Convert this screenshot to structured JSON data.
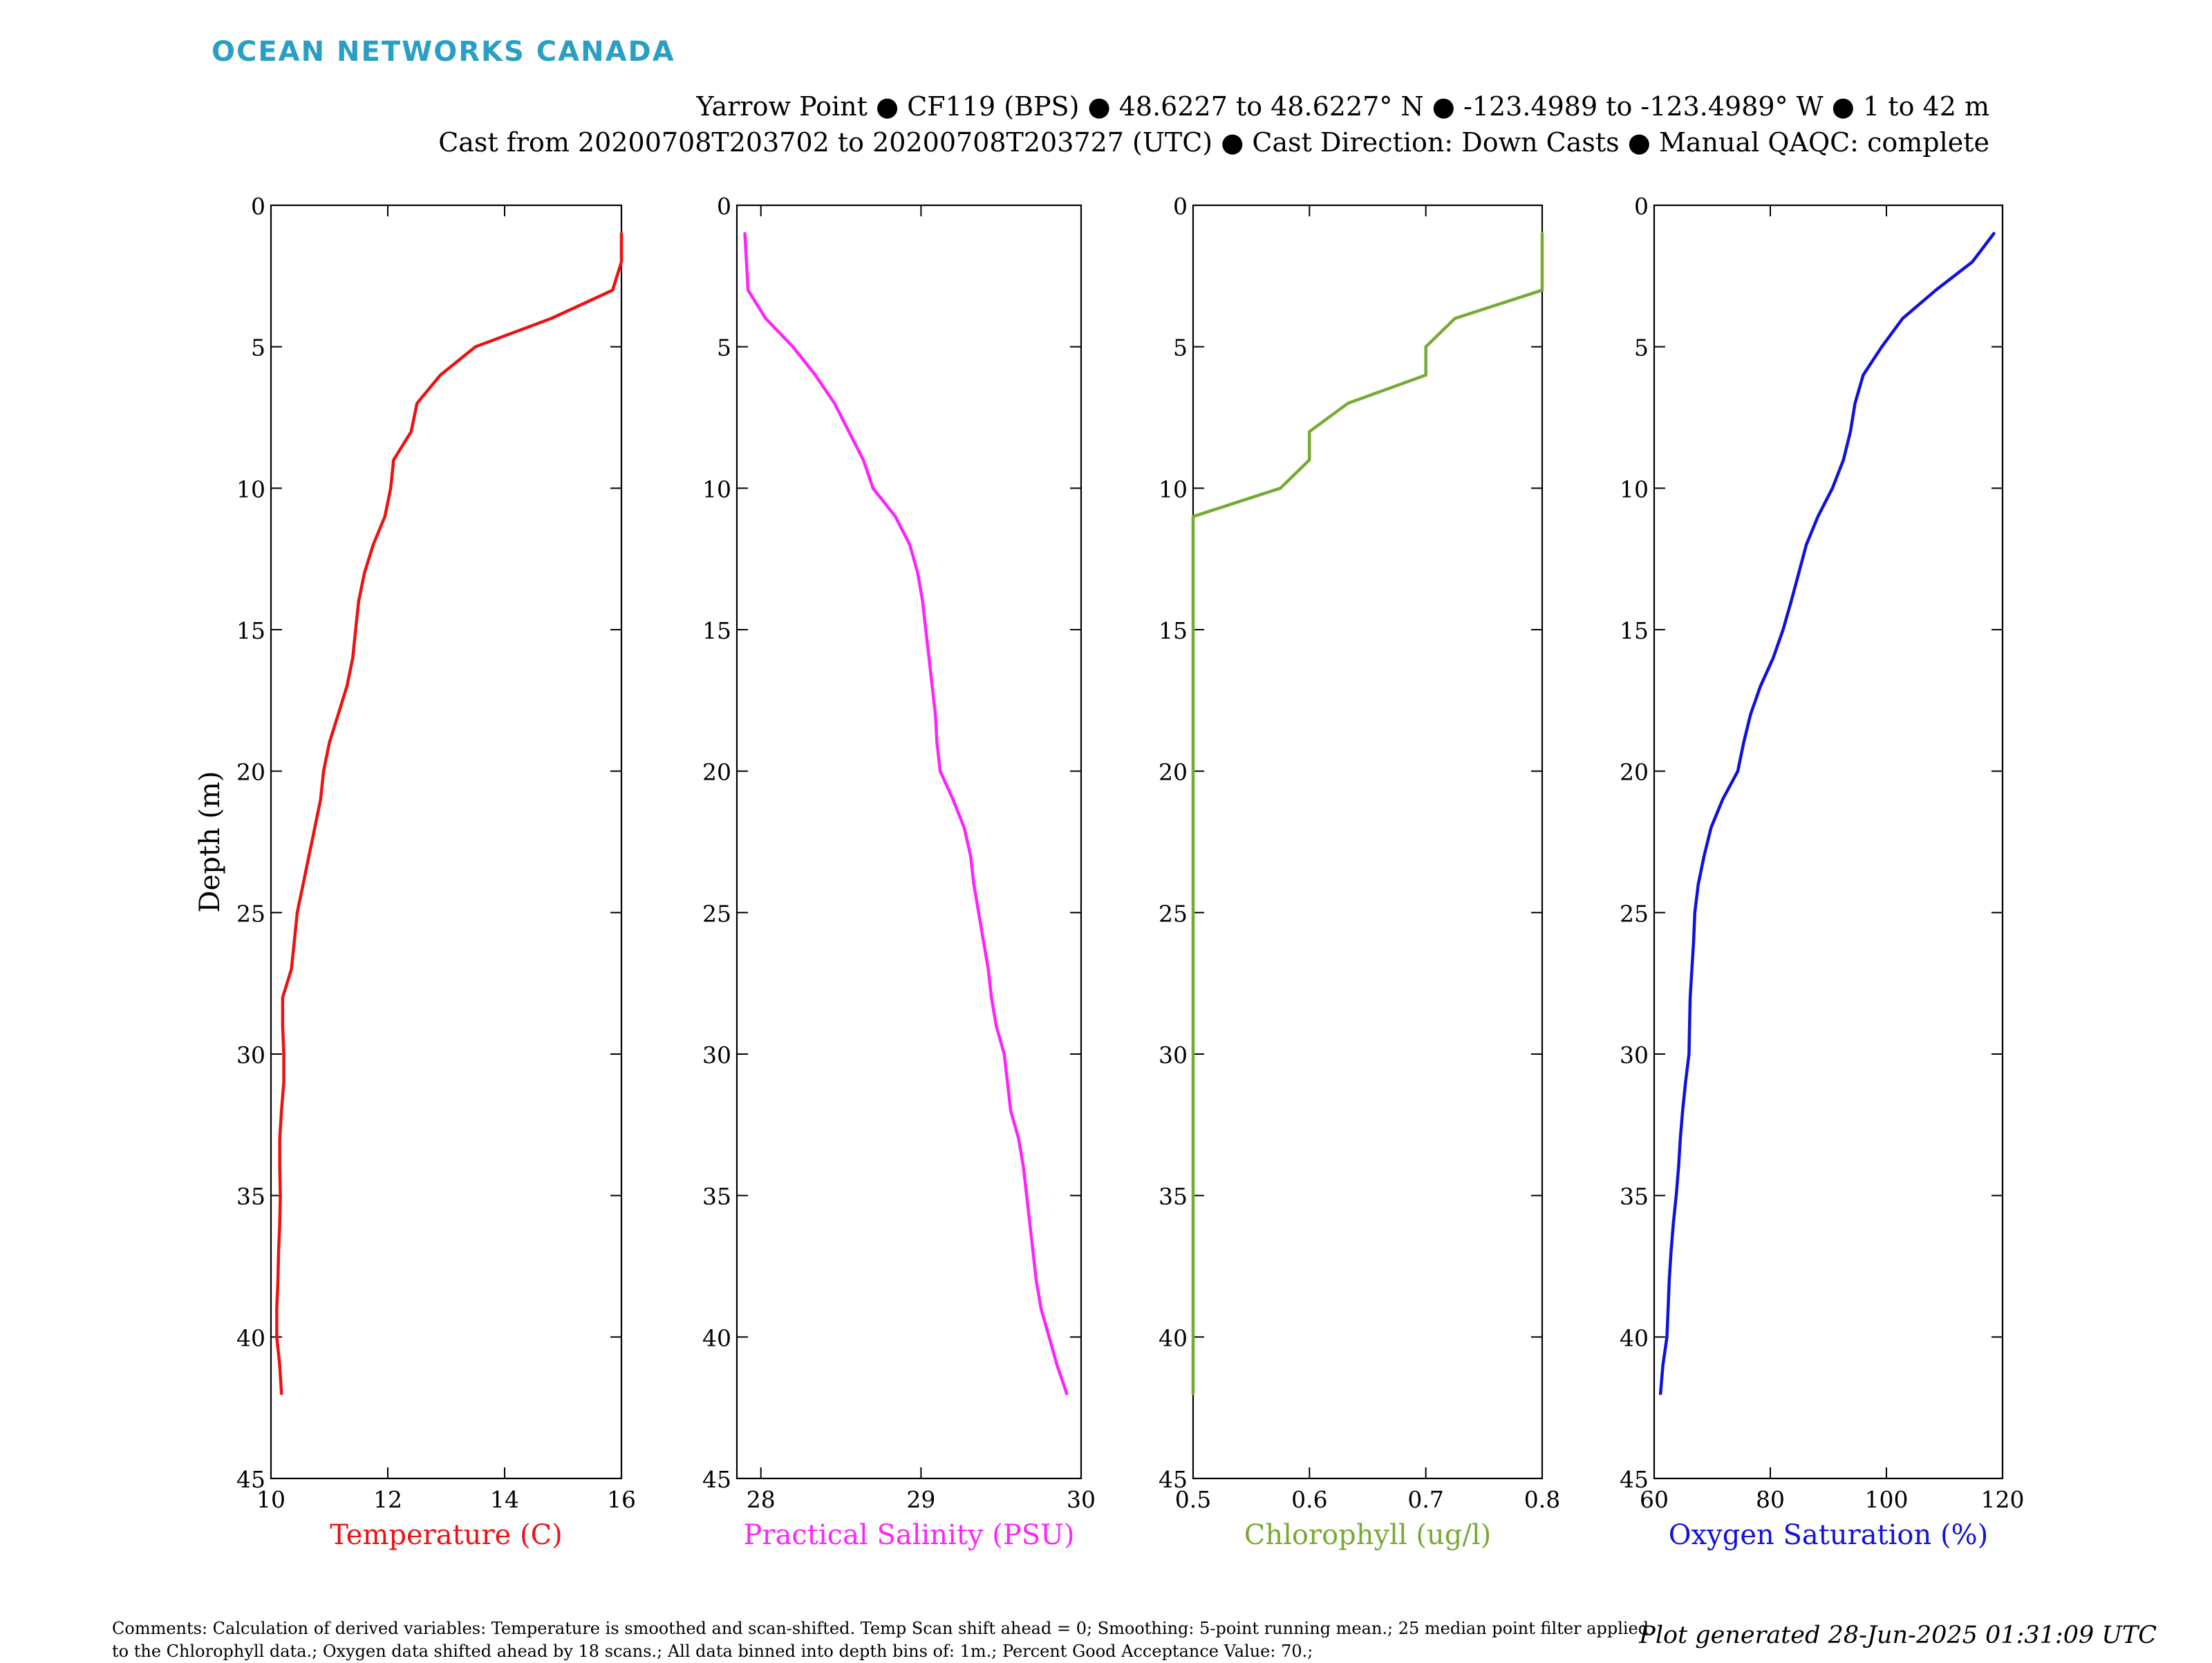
{
  "brand": "OCEAN NETWORKS CANADA",
  "header": {
    "line1": "Yarrow Point ● CF119 (BPS) ● 48.6227 to 48.6227° N ● -123.4989 to -123.4989° W ● 1 to 42 m",
    "line2": "Cast from 20200708T203702 to 20200708T203727 (UTC) ● Cast Direction: Down Casts ● Manual QAQC: complete"
  },
  "colors": {
    "brand": "#2a9fc4",
    "temperature": "#ee1111",
    "salinity": "#ff22ff",
    "chlorophyll": "#77aa33",
    "oxygen": "#1111dd"
  },
  "chart_data": [
    {
      "type": "line",
      "xlabel": "Temperature (C)",
      "ylabel": "Depth (m)",
      "xlim": [
        10,
        16
      ],
      "ylim": [
        45,
        0
      ],
      "xticks": [
        10,
        12,
        14,
        16
      ],
      "yticks": [
        0,
        5,
        10,
        15,
        20,
        25,
        30,
        35,
        40,
        45
      ],
      "color": "#ee1111",
      "x": [
        16.0,
        16.0,
        15.85,
        14.8,
        13.5,
        12.9,
        12.5,
        12.4,
        12.1,
        12.05,
        11.95,
        11.75,
        11.6,
        11.5,
        11.45,
        11.4,
        11.3,
        11.15,
        11.0,
        10.9,
        10.85,
        10.75,
        10.65,
        10.55,
        10.45,
        10.4,
        10.35,
        10.2,
        10.2,
        10.22,
        10.22,
        10.18,
        10.15,
        10.15,
        10.16,
        10.15,
        10.13,
        10.12,
        10.1,
        10.1,
        10.15,
        10.18
      ],
      "y": [
        1,
        2,
        3,
        4,
        5,
        6,
        7,
        8,
        9,
        10,
        11,
        12,
        13,
        14,
        15,
        16,
        17,
        18,
        19,
        20,
        21,
        22,
        23,
        24,
        25,
        26,
        27,
        28,
        29,
        30,
        31,
        32,
        33,
        34,
        35,
        36,
        37,
        38,
        39,
        40,
        41,
        42
      ]
    },
    {
      "type": "line",
      "xlabel": "Practical Salinity (PSU)",
      "xlim": [
        27.85,
        30
      ],
      "ylim": [
        45,
        0
      ],
      "xticks": [
        28,
        29,
        30
      ],
      "yticks": [
        0,
        5,
        10,
        15,
        20,
        25,
        30,
        35,
        40,
        45
      ],
      "color": "#ff22ff",
      "x": [
        27.9,
        27.91,
        27.92,
        28.03,
        28.2,
        28.34,
        28.46,
        28.55,
        28.64,
        28.7,
        28.84,
        28.93,
        28.98,
        29.01,
        29.03,
        29.05,
        29.07,
        29.09,
        29.1,
        29.12,
        29.2,
        29.27,
        29.31,
        29.33,
        29.36,
        29.39,
        29.42,
        29.44,
        29.47,
        29.52,
        29.54,
        29.56,
        29.61,
        29.64,
        29.66,
        29.68,
        29.7,
        29.72,
        29.75,
        29.8,
        29.85,
        29.91
      ],
      "y": [
        1,
        2,
        3,
        4,
        5,
        6,
        7,
        8,
        9,
        10,
        11,
        12,
        13,
        14,
        15,
        16,
        17,
        18,
        19,
        20,
        21,
        22,
        23,
        24,
        25,
        26,
        27,
        28,
        29,
        30,
        31,
        32,
        33,
        34,
        35,
        36,
        37,
        38,
        39,
        40,
        41,
        42
      ]
    },
    {
      "type": "line",
      "xlabel": "Chlorophyll (ug/l)",
      "xlim": [
        0.5,
        0.8
      ],
      "ylim": [
        45,
        0
      ],
      "xticks": [
        0.5,
        0.6,
        0.7,
        0.8
      ],
      "yticks": [
        0,
        5,
        10,
        15,
        20,
        25,
        30,
        35,
        40,
        45
      ],
      "color": "#77aa33",
      "x": [
        0.8,
        0.8,
        0.8,
        0.725,
        0.7,
        0.7,
        0.633,
        0.6,
        0.6,
        0.575,
        0.5,
        0.5,
        0.5,
        0.5,
        0.5,
        0.5,
        0.5,
        0.5,
        0.5,
        0.5,
        0.5,
        0.5,
        0.5,
        0.5,
        0.5,
        0.5,
        0.5,
        0.5,
        0.5,
        0.5,
        0.5,
        0.5,
        0.5,
        0.5,
        0.5,
        0.5,
        0.5,
        0.5,
        0.5,
        0.5,
        0.5,
        0.5
      ],
      "y": [
        1,
        2,
        3,
        4,
        5,
        6,
        7,
        8,
        9,
        10,
        11,
        12,
        13,
        14,
        15,
        16,
        17,
        18,
        19,
        20,
        21,
        22,
        23,
        24,
        25,
        26,
        27,
        28,
        29,
        30,
        31,
        32,
        33,
        34,
        35,
        36,
        37,
        38,
        39,
        40,
        41,
        42
      ]
    },
    {
      "type": "line",
      "xlabel": "Oxygen Saturation (%)",
      "xlim": [
        60,
        120
      ],
      "ylim": [
        45,
        0
      ],
      "xticks": [
        60,
        80,
        100,
        120
      ],
      "yticks": [
        0,
        5,
        10,
        15,
        20,
        25,
        30,
        35,
        40,
        45
      ],
      "color": "#1111dd",
      "x": [
        118.5,
        114.8,
        108.5,
        102.8,
        99.2,
        96,
        94.6,
        93.8,
        92.6,
        90.7,
        88.2,
        86.2,
        84.9,
        83.6,
        82.2,
        80.5,
        78.3,
        76.6,
        75.4,
        74.4,
        71.8,
        69.8,
        68.6,
        67.6,
        67.0,
        66.8,
        66.5,
        66.2,
        66.1,
        66.0,
        65.4,
        64.9,
        64.5,
        64.2,
        63.8,
        63.3,
        62.9,
        62.6,
        62.4,
        62.2,
        61.5,
        61.1
      ],
      "y": [
        1,
        2,
        3,
        4,
        5,
        6,
        7,
        8,
        9,
        10,
        11,
        12,
        13,
        14,
        15,
        16,
        17,
        18,
        19,
        20,
        21,
        22,
        23,
        24,
        25,
        26,
        27,
        28,
        29,
        30,
        31,
        32,
        33,
        34,
        35,
        36,
        37,
        38,
        39,
        40,
        41,
        42
      ]
    }
  ],
  "comments": "Comments: Calculation of derived variables: Temperature is smoothed and scan-shifted. Temp Scan shift ahead = 0; Smoothing: 5-point running mean.; 25 median point filter applied to the Chlorophyll data.; Oxygen data shifted ahead by 18 scans.; All data binned into depth bins of: 1m.; Percent Good Acceptance Value: 70.;",
  "generated": "Plot generated 28-Jun-2025 01:31:09 UTC"
}
